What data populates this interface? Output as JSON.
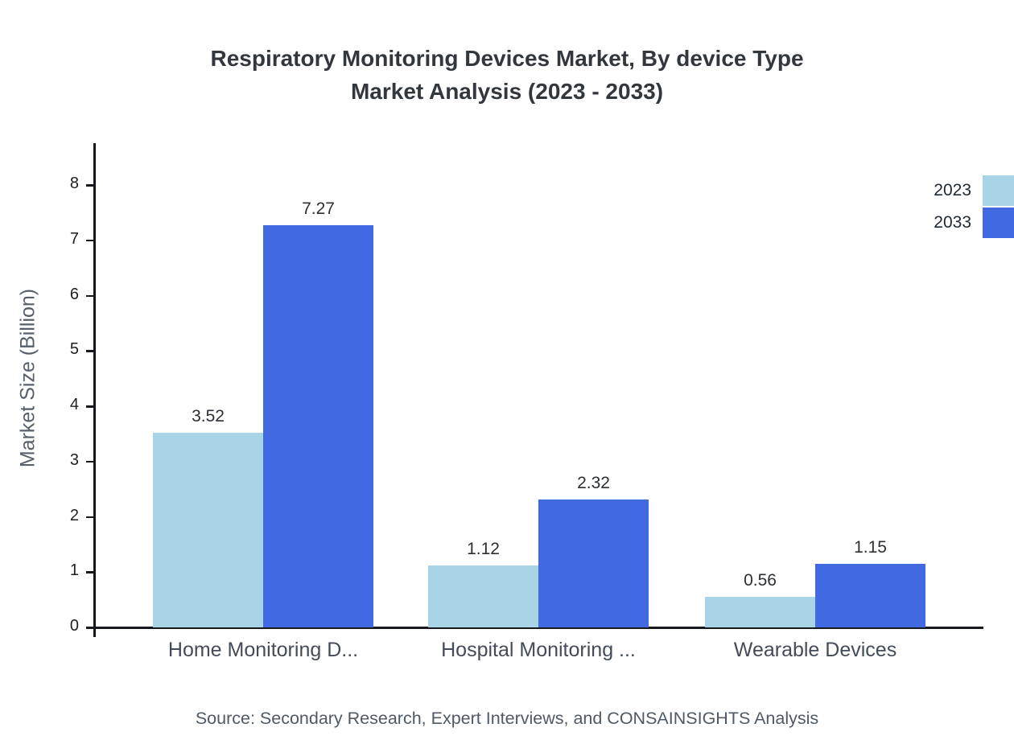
{
  "title": {
    "line1": "Respiratory Monitoring Devices Market, By device Type",
    "line2": "Market Analysis (2023 - 2033)"
  },
  "chart_data": {
    "type": "bar",
    "categories": [
      "Home Monitoring D...",
      "Hospital Monitoring ...",
      "Wearable Devices"
    ],
    "series": [
      {
        "name": "2023",
        "color": "#a8d4e6",
        "values": [
          3.52,
          1.12,
          0.56
        ]
      },
      {
        "name": "2033",
        "color": "#4169e1",
        "values": [
          7.27,
          2.32,
          1.15
        ]
      }
    ],
    "ylabel": "Market Size (Billion)",
    "yticks": [
      0,
      1,
      2,
      3,
      4,
      5,
      6,
      7,
      8
    ],
    "ylim": [
      0,
      8.75
    ],
    "grid": false,
    "legend_position": "top-right"
  },
  "source": "Source: Secondary Research, Expert Interviews, and CONSAINSIGHTS Analysis"
}
